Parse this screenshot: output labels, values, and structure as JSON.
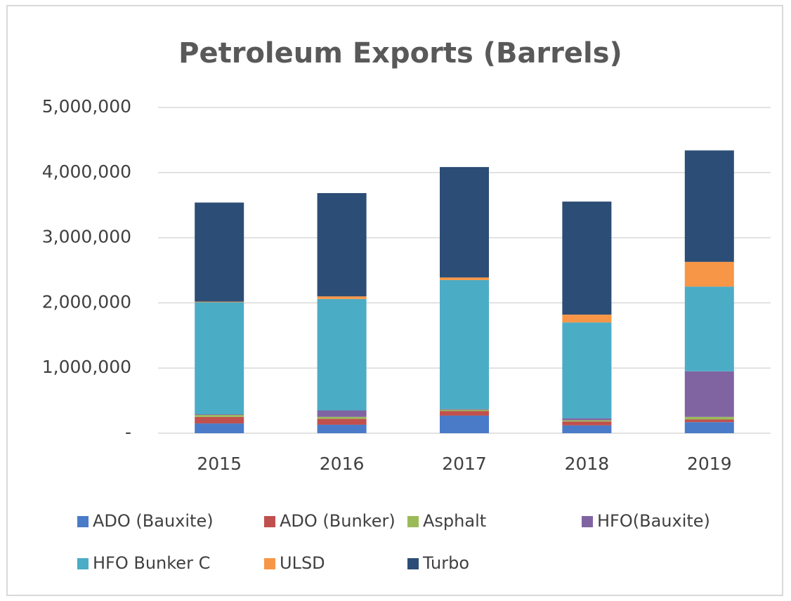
{
  "chart_data": {
    "type": "stacked_bar",
    "title": "Petroleum Exports (Barrels)",
    "categories": [
      "2015",
      "2016",
      "2017",
      "2018",
      "2019"
    ],
    "series": [
      {
        "name": "ADO (Bauxite)",
        "color": "#4a7bc8",
        "values": [
          150000,
          130000,
          270000,
          120000,
          170000
        ]
      },
      {
        "name": "ADO (Bunker)",
        "color": "#c0504d",
        "values": [
          100000,
          90000,
          70000,
          60000,
          40000
        ]
      },
      {
        "name": "Asphalt",
        "color": "#9bbb59",
        "values": [
          30000,
          30000,
          20000,
          20000,
          40000
        ]
      },
      {
        "name": "HFO(Bauxite)",
        "color": "#8064a2",
        "values": [
          10000,
          100000,
          10000,
          30000,
          700000
        ]
      },
      {
        "name": "HFO Bunker C",
        "color": "#4bacc6",
        "values": [
          1720000,
          1710000,
          1980000,
          1470000,
          1300000
        ]
      },
      {
        "name": "ULSD",
        "color": "#f79646",
        "values": [
          10000,
          40000,
          40000,
          120000,
          380000
        ]
      },
      {
        "name": "Turbo",
        "color": "#2c4d75",
        "values": [
          1520000,
          1585000,
          1695000,
          1735000,
          1710000
        ]
      }
    ],
    "ylim": [
      0,
      5000000
    ],
    "yticks": [
      {
        "value": 0,
        "label": "-"
      },
      {
        "value": 1000000,
        "label": "1,000,000"
      },
      {
        "value": 2000000,
        "label": "2,000,000"
      },
      {
        "value": 3000000,
        "label": "3,000,000"
      },
      {
        "value": 4000000,
        "label": "4,000,000"
      },
      {
        "value": 5000000,
        "label": "5,000,000"
      }
    ],
    "grid": true,
    "legend": "bottom"
  }
}
